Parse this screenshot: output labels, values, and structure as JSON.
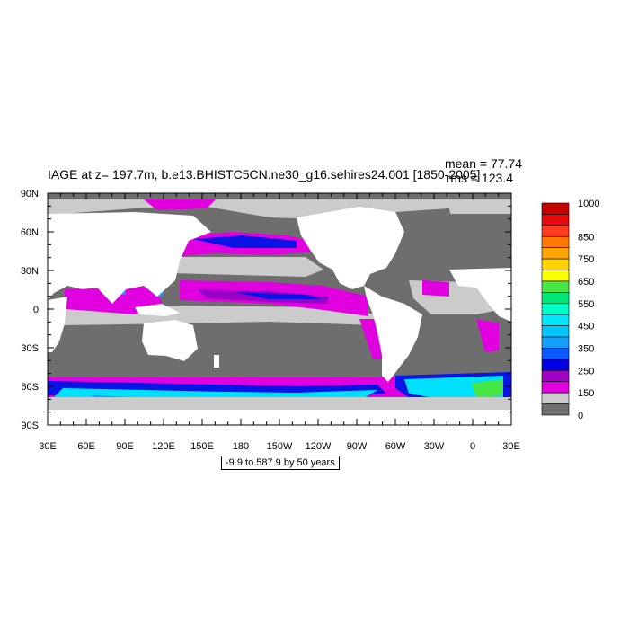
{
  "title": "IAGE at z= 197.7m, b.e13.BHISTC5CN.ne30_g16.sehires24.001 [1850-2005]",
  "stats": {
    "mean": "mean = 77.74",
    "rms": "rms = 123.4"
  },
  "range_note": "-9.9 to 587.9 by 50 years",
  "map": {
    "lon_labels": [
      "30E",
      "60E",
      "90E",
      "120E",
      "150E",
      "180",
      "150W",
      "120W",
      "90W",
      "60W",
      "30W",
      "0",
      "30E"
    ],
    "lat_labels": [
      "90N",
      "60N",
      "30N",
      "0",
      "30S",
      "60S",
      "90S"
    ],
    "colors": {
      "land": "#ffffff",
      "gray_ocean": "#6e6e6e",
      "light_gray": "#cbcbcb",
      "magenta": "#e000e0",
      "purple": "#9a00c8",
      "blue": "#0a14e6",
      "cyan": "#00e0ff",
      "sky": "#1496ff",
      "green": "#46e646"
    }
  },
  "colorbar": {
    "labels": [
      "1000",
      "850",
      "750",
      "650",
      "550",
      "450",
      "350",
      "250",
      "150",
      "0"
    ],
    "colors": [
      "#c80000",
      "#e60a0a",
      "#ff3c1e",
      "#ff7800",
      "#ffa500",
      "#ffd200",
      "#ffff00",
      "#46e646",
      "#00e678",
      "#00ffc8",
      "#00e6ff",
      "#00c8ff",
      "#14a0ff",
      "#0a5aff",
      "#0000e6",
      "#a000c8",
      "#e000e0",
      "#cbcbcb",
      "#6e6e6e"
    ]
  }
}
